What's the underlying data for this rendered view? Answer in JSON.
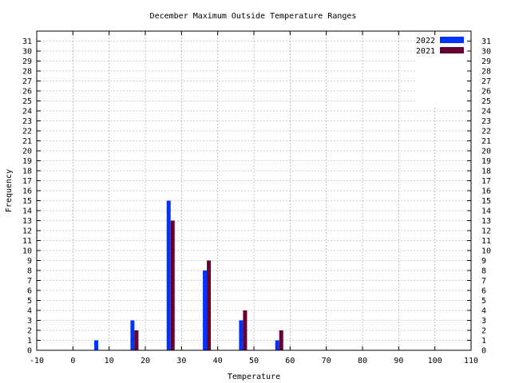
{
  "chart_data": {
    "type": "bar",
    "title": "December Maximum Outside Temperature Ranges",
    "xlabel": "Temperature",
    "ylabel": "Frequency",
    "xlim": [
      -10,
      110
    ],
    "ylim": [
      0,
      32
    ],
    "x_ticks": [
      -10,
      0,
      10,
      20,
      30,
      40,
      50,
      60,
      70,
      80,
      90,
      100,
      110
    ],
    "y_ticks": [
      0,
      1,
      2,
      3,
      4,
      5,
      6,
      7,
      8,
      9,
      10,
      11,
      12,
      13,
      14,
      15,
      16,
      17,
      18,
      19,
      20,
      21,
      22,
      23,
      24,
      25,
      26,
      27,
      28,
      29,
      30,
      31
    ],
    "y_ticks_mirrored_right": true,
    "grid": true,
    "legend_position": "top-right",
    "x": [
      7,
      17,
      27,
      37,
      47,
      57
    ],
    "series": [
      {
        "name": "2022",
        "color": "#0033ff",
        "values": [
          1,
          3,
          15,
          8,
          3,
          1
        ]
      },
      {
        "name": "2021",
        "color": "#660033",
        "values": [
          0,
          2,
          13,
          9,
          4,
          2
        ]
      }
    ]
  }
}
